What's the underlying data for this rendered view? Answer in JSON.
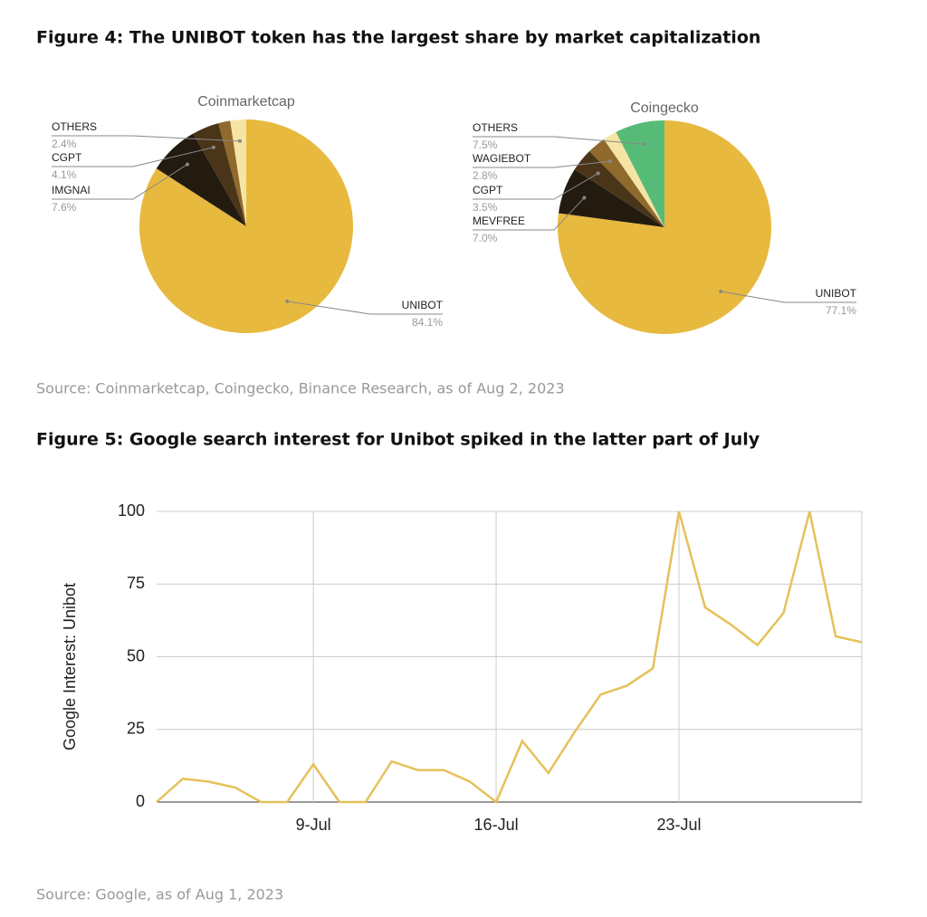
{
  "figure4_title": "Figure 4: The UNIBOT token has the largest share by market capitalization",
  "figure4_source": "Source: Coinmarketcap, Coingecko, Binance Research, as of Aug 2, 2023",
  "figure5_title": "Figure 5: Google search interest for Unibot spiked in the latter part of July",
  "figure5_source": "Source: Google, as of Aug 1, 2023",
  "chart_data": [
    {
      "type": "pie",
      "title": "Coinmarketcap",
      "categories": [
        "UNIBOT",
        "IMGNAI",
        "CGPT",
        null,
        "OTHERS"
      ],
      "values": [
        84.1,
        7.6,
        4.1,
        1.8,
        2.4
      ],
      "value_labels": [
        "84.1%",
        "7.6%",
        "4.1%",
        null,
        "2.4%"
      ],
      "colors": [
        "#e8b93f",
        "#231b0f",
        "#4a3519",
        "#8f6a2c",
        "#f6e4a4"
      ]
    },
    {
      "type": "pie",
      "title": "Coingecko",
      "categories": [
        "UNIBOT",
        "MEVFREE",
        "CGPT",
        "WAGIEBOT",
        null,
        "OTHERS"
      ],
      "values": [
        77.1,
        7.0,
        3.5,
        2.8,
        2.1,
        7.5
      ],
      "value_labels": [
        "77.1%",
        "7.0%",
        "3.5%",
        "2.8%",
        null,
        "7.5%"
      ],
      "colors": [
        "#e8b93f",
        "#231b0f",
        "#4a3519",
        "#8f6a2c",
        "#f6e4a4",
        "#57bb78"
      ]
    },
    {
      "type": "line",
      "y_label": "Google Interest: Unibot",
      "categories": [
        null,
        null,
        null,
        null,
        null,
        null,
        "9-Jul",
        null,
        null,
        null,
        null,
        null,
        null,
        "16-Jul",
        null,
        null,
        null,
        null,
        null,
        null,
        "23-Jul",
        null,
        null,
        null,
        null,
        null,
        null,
        null
      ],
      "values": [
        0,
        8,
        7,
        5,
        0,
        0,
        13,
        0,
        0,
        14,
        11,
        11,
        7,
        0,
        21,
        10,
        24,
        37,
        40,
        46,
        100,
        67,
        61,
        54,
        65,
        100,
        57,
        55
      ],
      "color": "#e6c15a",
      "ylim": [
        0,
        100
      ],
      "yticks": [
        0,
        25,
        50,
        75,
        100
      ],
      "grid": true
    }
  ]
}
